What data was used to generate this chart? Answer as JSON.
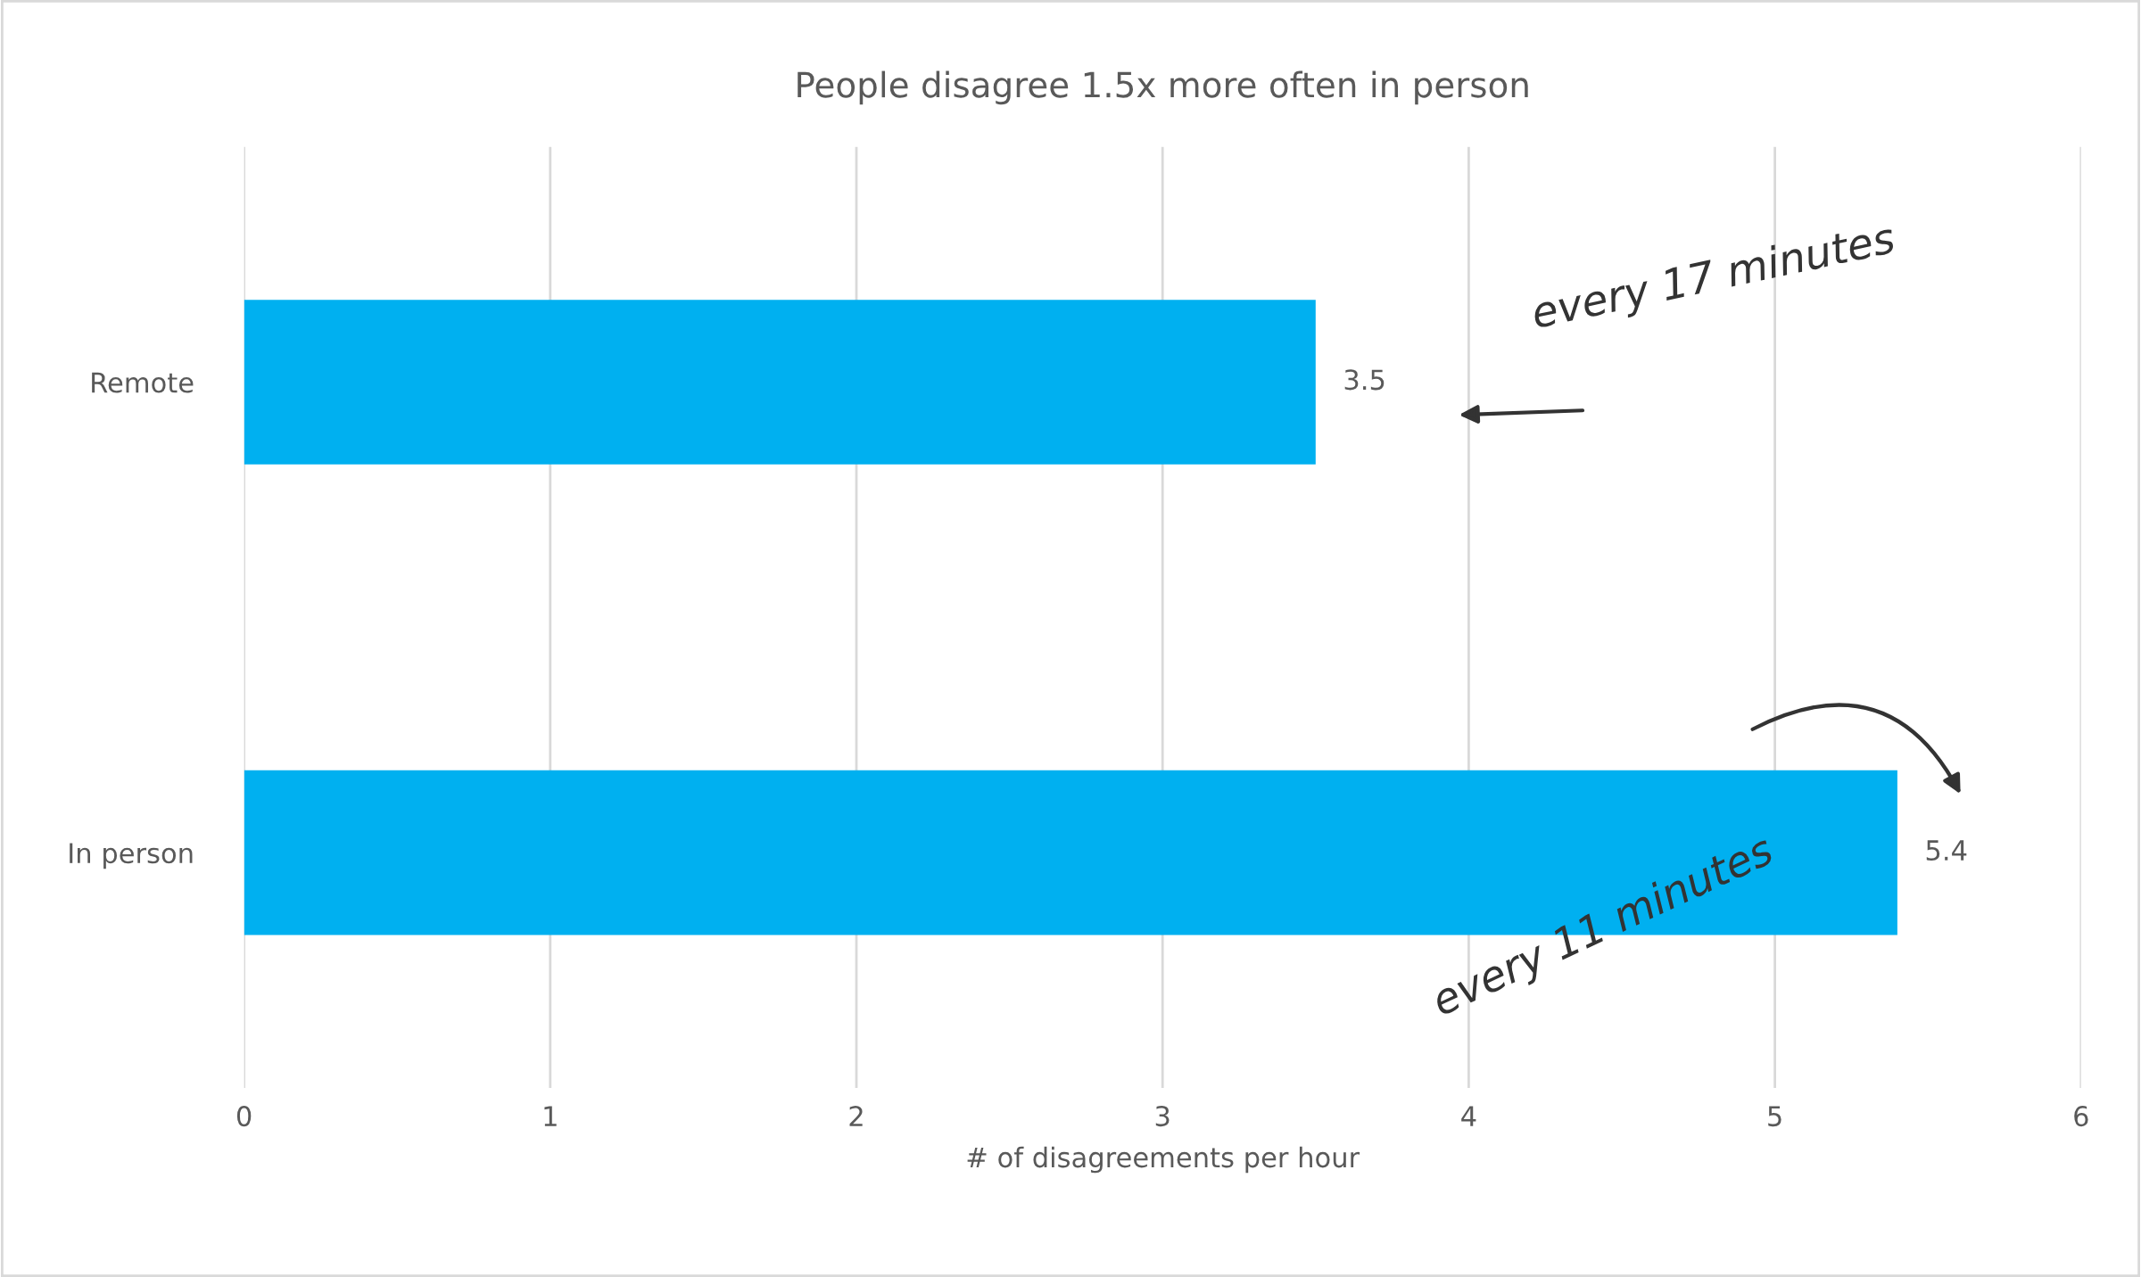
{
  "chart_data": {
    "type": "bar",
    "orientation": "horizontal",
    "title": "People disagree 1.5x more often in person",
    "xlabel": "# of disagreements per hour",
    "categories": [
      "Remote",
      "In person"
    ],
    "values": [
      3.5,
      5.4
    ],
    "color": "#00b0f0",
    "xlim": [
      0,
      6
    ],
    "xticks": [
      0,
      1,
      2,
      3,
      4,
      5,
      6
    ],
    "grid": "x",
    "data_labels": true,
    "annotations": [
      "every 17 minutes",
      "every 11 minutes"
    ]
  }
}
